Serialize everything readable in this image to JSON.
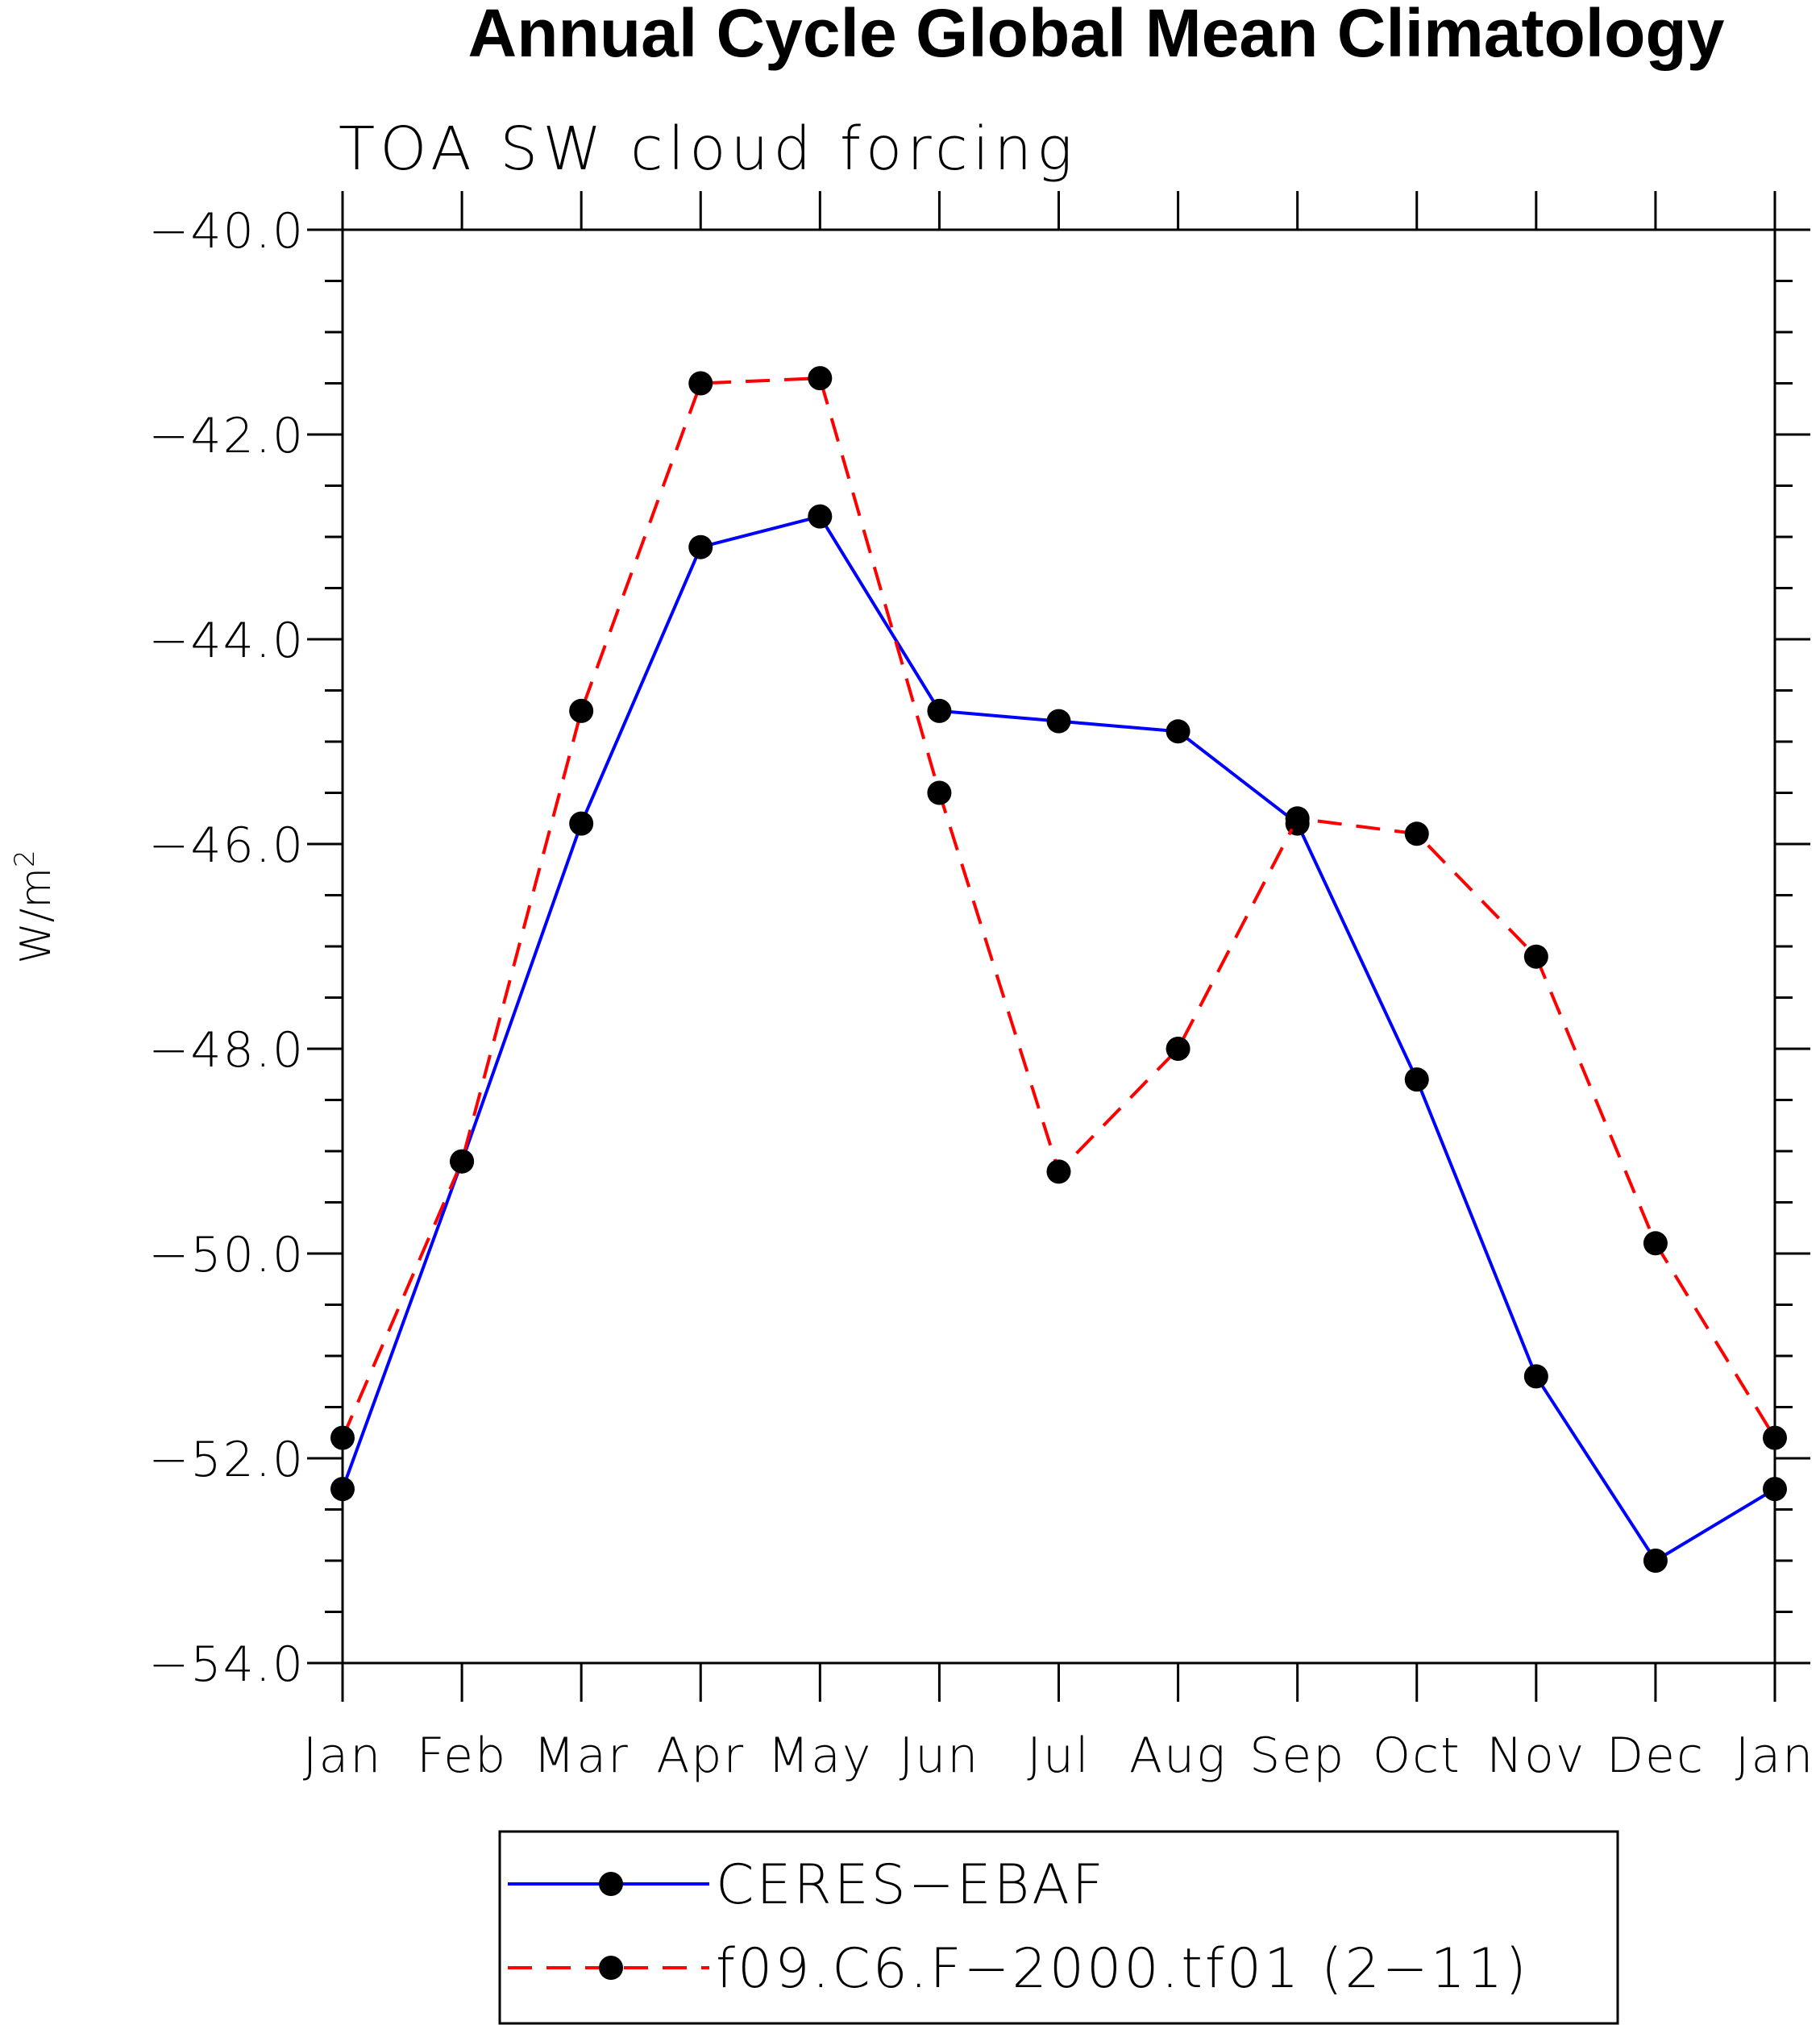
{
  "chart_data": {
    "type": "line",
    "title": "Annual Cycle Global Mean Climatology",
    "subtitle": "TOA SW cloud forcing",
    "xlabel": "",
    "ylabel": "W/m",
    "ylabel_superscript": "2",
    "categories": [
      "Jan",
      "Feb",
      "Mar",
      "Apr",
      "May",
      "Jun",
      "Jul",
      "Aug",
      "Sep",
      "Oct",
      "Nov",
      "Dec",
      "Jan"
    ],
    "y_tick_labels": [
      "−40.0",
      "−42.0",
      "−44.0",
      "−46.0",
      "−48.0",
      "−50.0",
      "−52.0",
      "−54.0"
    ],
    "y_ticks": [
      -40,
      -42,
      -44,
      -46,
      -48,
      -50,
      -52,
      -54
    ],
    "ylim": [
      -54,
      -40
    ],
    "grid": false,
    "legend_position": "bottom",
    "series": [
      {
        "name": "CERES−EBAF",
        "color": "#0000ff",
        "line_style": "solid",
        "marker": "filled-circle",
        "values": [
          -52.3,
          -49.1,
          -45.8,
          -43.1,
          -42.8,
          -44.7,
          -44.8,
          -44.9,
          -45.8,
          -48.3,
          -51.2,
          -53.0,
          -52.3
        ]
      },
      {
        "name": "f09.C6.F−2000.tf01 (2−11)",
        "color": "#ff0000",
        "line_style": "dashed",
        "marker": "filled-circle",
        "values": [
          -51.8,
          -49.1,
          -44.7,
          -41.5,
          -41.45,
          -45.5,
          -49.2,
          -48.0,
          -45.75,
          -45.9,
          -47.1,
          -49.9,
          -51.8
        ]
      }
    ]
  }
}
